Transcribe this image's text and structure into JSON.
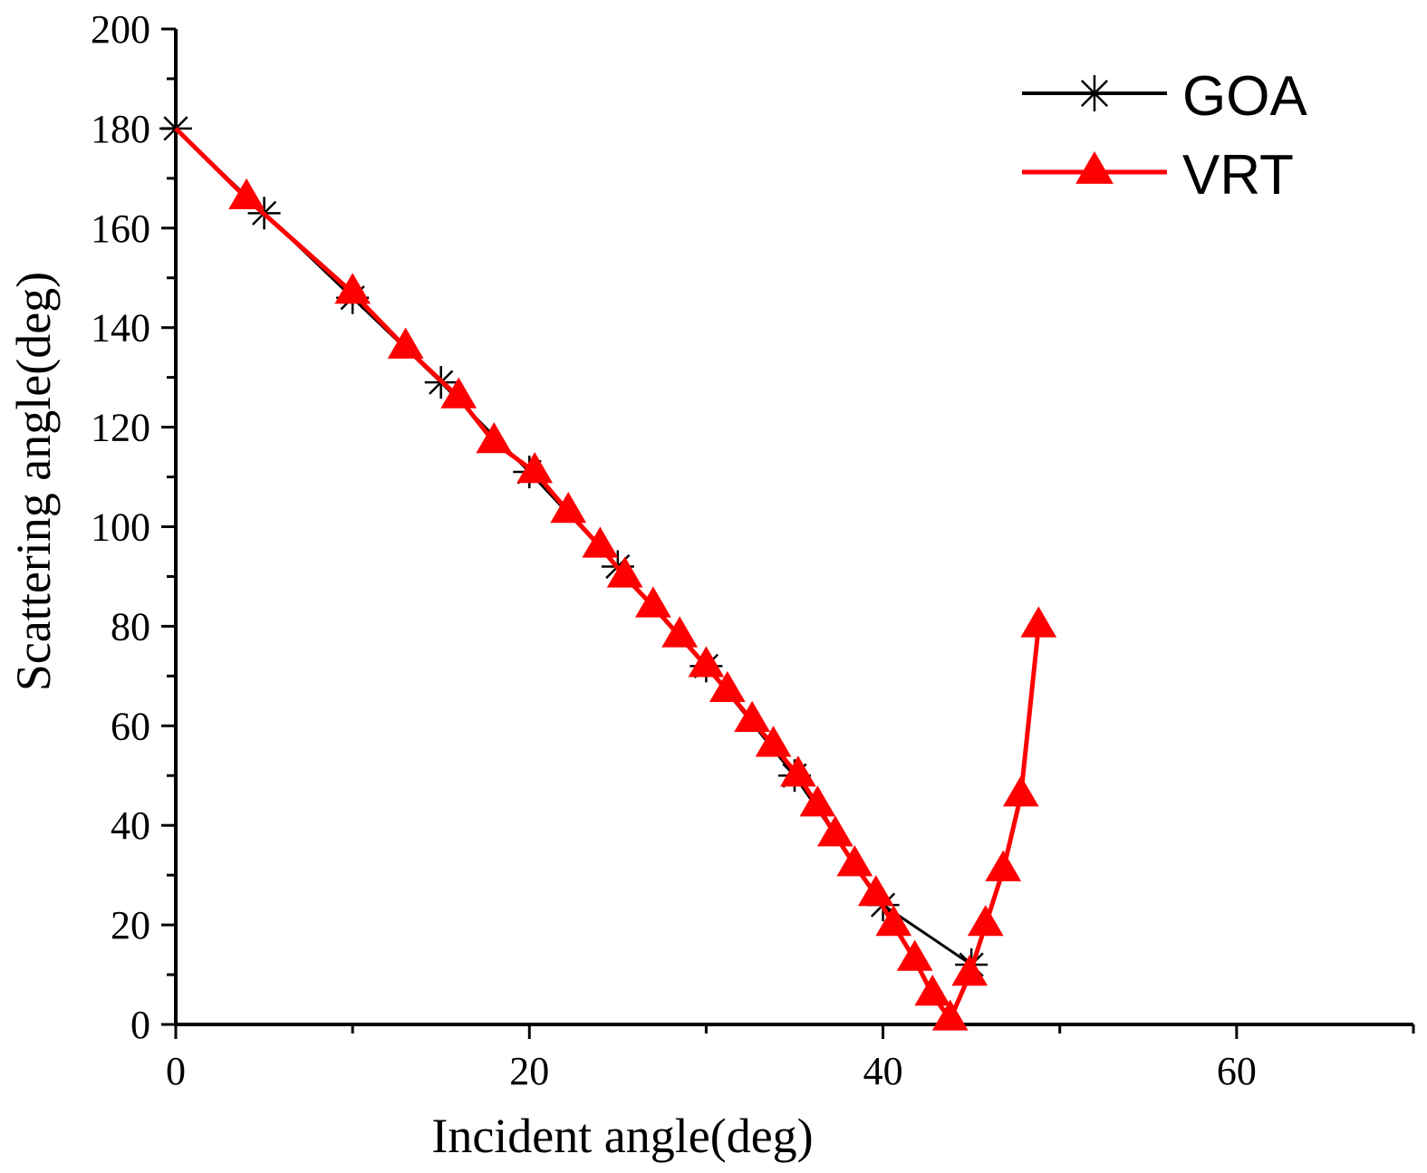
{
  "chart_data": {
    "type": "line",
    "title": "",
    "xlabel": "Incident angle(deg)",
    "ylabel": "Scattering angle(deg)",
    "xlim": [
      0,
      70
    ],
    "ylim": [
      0,
      200
    ],
    "xticks": [
      0,
      20,
      40,
      60
    ],
    "yticks": [
      0,
      20,
      40,
      60,
      80,
      100,
      120,
      140,
      160,
      180,
      200
    ],
    "xtick_labels": [
      "0",
      "20",
      "40",
      "60"
    ],
    "ytick_labels": [
      "0",
      "20",
      "40",
      "60",
      "80",
      "100",
      "120",
      "140",
      "160",
      "180",
      "200"
    ],
    "legend_position": "top-right",
    "series": [
      {
        "name": "GOA",
        "color": "#000000",
        "marker": "asterisk",
        "x": [
          0,
          5,
          10,
          15,
          20,
          25,
          30,
          35,
          40,
          45
        ],
        "y": [
          180,
          163,
          146,
          129,
          111,
          92,
          72,
          50,
          24,
          12
        ]
      },
      {
        "name": "VRT",
        "color": "#ff0000",
        "marker": "triangle",
        "x": [
          0,
          4,
          10,
          13,
          16,
          18,
          20.3,
          22.2,
          24,
          25.4,
          27,
          28.5,
          30,
          31.2,
          32.6,
          33.8,
          35.2,
          36.3,
          37.3,
          38.4,
          39.6,
          40.6,
          41.8,
          42.8,
          43.8,
          44.9,
          45.8,
          46.8,
          47.8,
          48.8
        ],
        "y": [
          180,
          166,
          147,
          136,
          126,
          117,
          111,
          103,
          96,
          90,
          84,
          78,
          72,
          67,
          61,
          56,
          50,
          44,
          38,
          32,
          26,
          20,
          13,
          6,
          1,
          10,
          20,
          31,
          46,
          80
        ]
      }
    ]
  }
}
